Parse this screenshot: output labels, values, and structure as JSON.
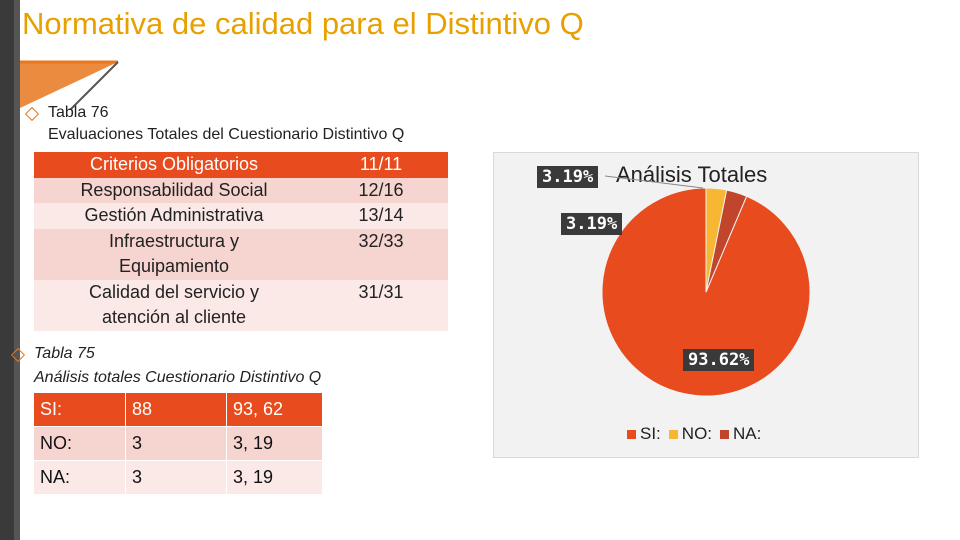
{
  "slide": {
    "title": "Normativa de calidad para el Distintivo Q",
    "bullet1_line1": "Tabla 76",
    "bullet1_line2": "Evaluaciones Totales del Cuestionario Distintivo Q",
    "bullet2_line1": "Tabla 75",
    "bullet2_line2": "Análisis totales Cuestionario Distintivo Q"
  },
  "table76": {
    "rows": [
      {
        "label": "Criterios Obligatorios",
        "value": "11/11"
      },
      {
        "label": "Responsabilidad Social",
        "value": "12/16"
      },
      {
        "label": "Gestión Administrativa",
        "value": "13/14"
      },
      {
        "label": "Infraestructura y Equipamiento",
        "value": "32/33"
      },
      {
        "label": "Calidad del servicio y atención al cliente",
        "value": "31/31"
      }
    ]
  },
  "table75": {
    "rows": [
      {
        "label": "SI:",
        "count": "88",
        "pct": "93, 62"
      },
      {
        "label": "NO:",
        "count": "3",
        "pct": "3, 19"
      },
      {
        "label": "NA:",
        "count": "3",
        "pct": "3, 19"
      }
    ]
  },
  "colors": {
    "title": "#e8a000",
    "header_row": "#e84c1e",
    "row_light": "#f6d4d0",
    "row_lighter": "#fae9e7",
    "si": "#e84c1e",
    "no": "#f7b733",
    "na": "#c0452a"
  },
  "chart_data": {
    "type": "pie",
    "title": "Análisis Totales",
    "categories": [
      "SI:",
      "NO:",
      "NA:"
    ],
    "values": [
      93.62,
      3.19,
      3.19
    ],
    "data_labels": [
      "93.62%",
      "3.19%",
      "3.19%"
    ],
    "legend_position": "bottom-right"
  }
}
